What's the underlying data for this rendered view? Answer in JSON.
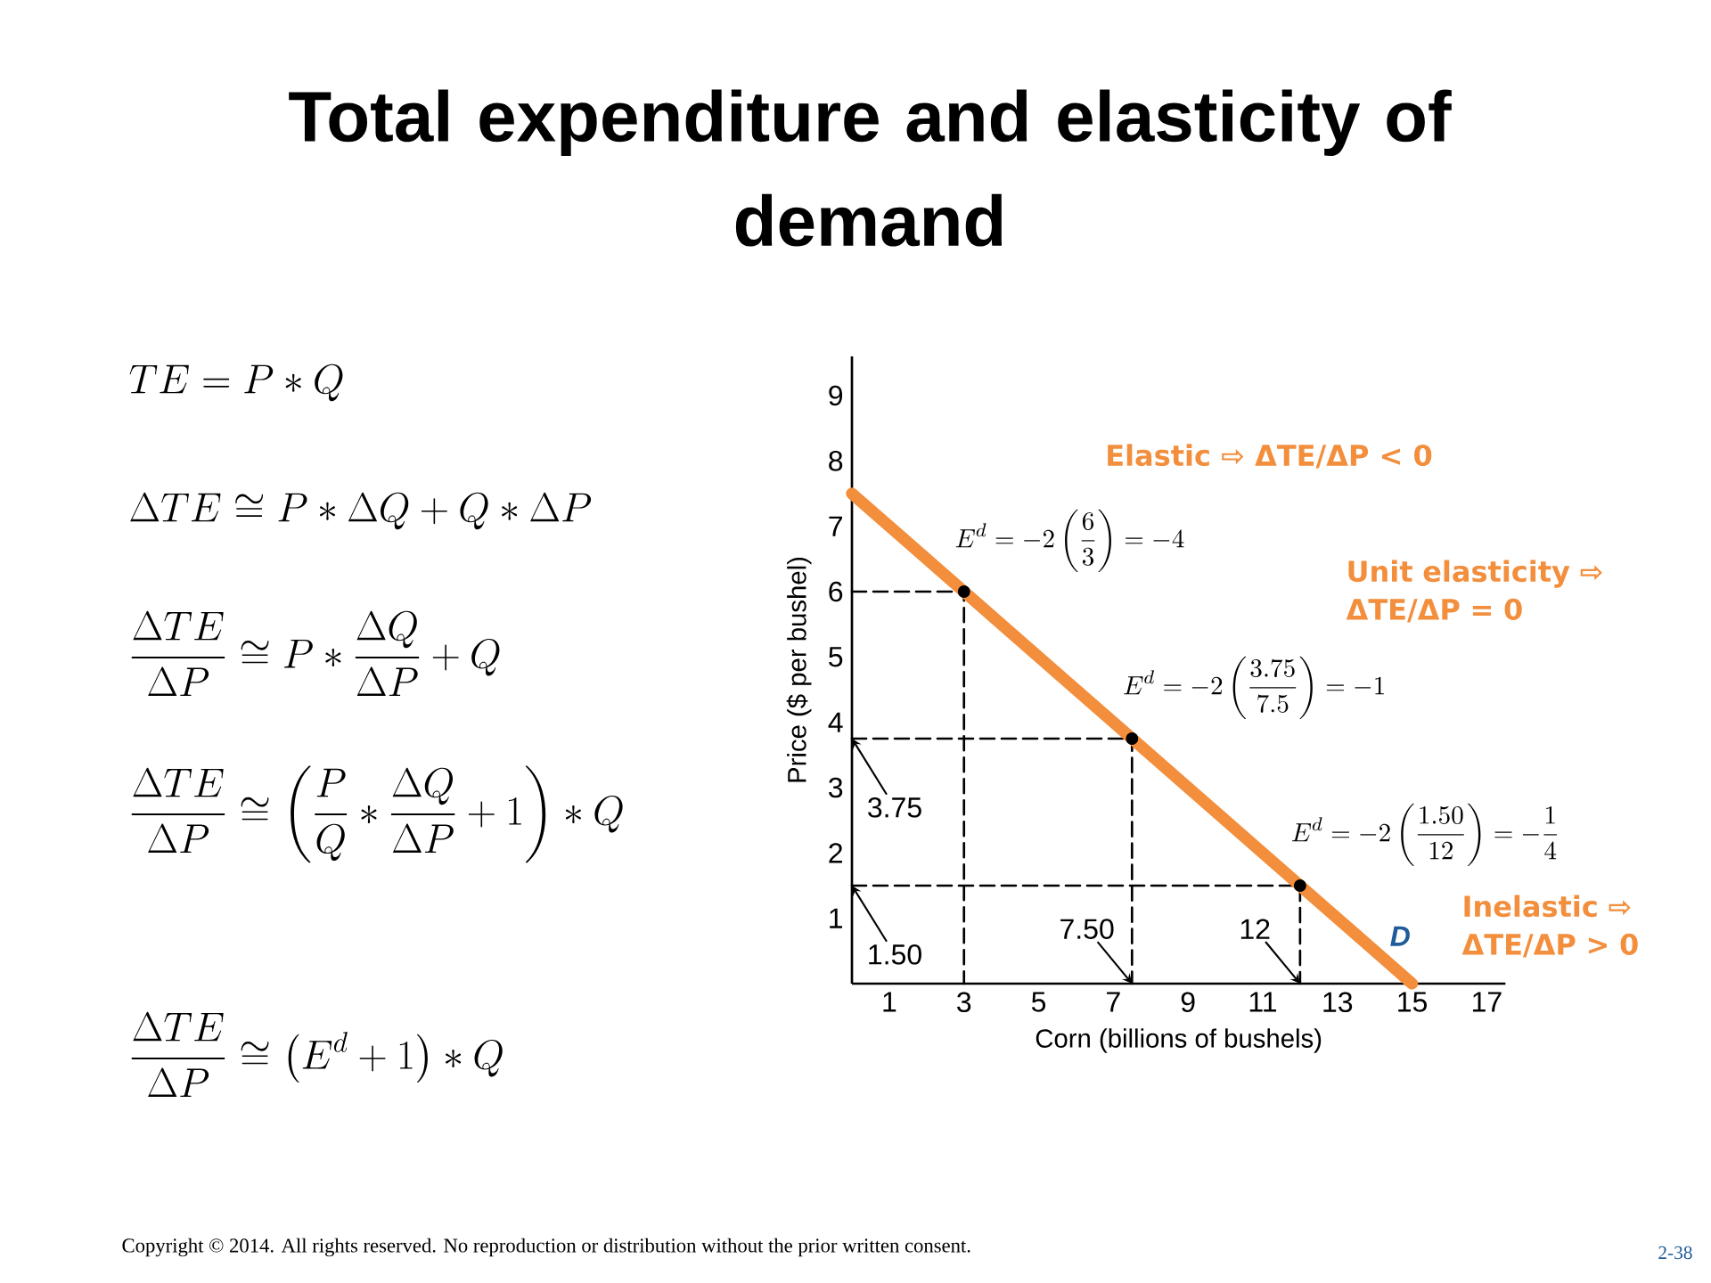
{
  "chart_data": {
    "type": "line",
    "title": "Total expenditure and elasticity of demand",
    "xlabel": "Corn (billions of bushels)",
    "ylabel": "Price ($ per bushel)",
    "xlim": [
      0,
      17.5
    ],
    "ylim": [
      0,
      9.6
    ],
    "xticks": [
      1,
      3,
      5,
      7,
      9,
      11,
      13,
      15,
      17
    ],
    "yticks": [
      1,
      2,
      3,
      4,
      5,
      6,
      7,
      8,
      9
    ],
    "series": [
      {
        "color": "#000000",
        "line_style": "dashed",
        "x": [
          0,
          3,
          3
        ],
        "values": [
          6,
          6,
          0
        ]
      },
      {
        "color": "#000000",
        "line_style": "dashed",
        "x": [
          0,
          7.5,
          7.5
        ],
        "values": [
          3.75,
          3.75,
          0
        ]
      },
      {
        "color": "#000000",
        "line_style": "dashed",
        "x": [
          0,
          12,
          12
        ],
        "values": [
          1.5,
          1.5,
          0
        ]
      },
      {
        "name": "D",
        "color": "#f28e3c",
        "line_style": "solid",
        "x": [
          0,
          15
        ],
        "values": [
          7.5,
          0
        ]
      },
      {
        "type": "scatter",
        "color": "#000000",
        "x": [
          3,
          7.5,
          12
        ],
        "values": [
          6,
          3.75,
          1.5
        ]
      }
    ],
    "annotations": [
      "TE = P \\ast Q",
      "\\Delta TE \\cong P \\ast \\Delta Q + Q \\ast \\Delta P",
      "\\frac{\\Delta TE}{\\Delta P} \\cong P \\ast \\frac{\\Delta Q}{\\Delta P} + Q",
      "\\frac{\\Delta TE}{\\Delta P} \\cong \\left(\\frac{P}{Q} \\ast \\frac{\\Delta Q}{\\Delta P} + 1\\right) \\ast Q",
      "\\frac{\\Delta TE}{\\Delta P} \\cong \\left(E^{d} + 1\\right) \\ast Q",
      {
        "text": "E^{d} = -2\\left(\\frac{6}{3}\\right) = -4",
        "x": 3,
        "y": 6
      },
      {
        "text": "E^{d} = -2\\left(\\frac{3.75}{7.5}\\right) = -1",
        "x": 7.5,
        "y": 3.75
      },
      {
        "text": "E^{d} = -2\\left(\\frac{1.50}{12}\\right) = -\\frac{1}{4}",
        "x": 12,
        "y": 1.5
      },
      {
        "text": "3.75",
        "x": 0,
        "y": 3.75
      },
      {
        "text": "1.50",
        "x": 0,
        "y": 1.5
      },
      {
        "text": "7.50",
        "x": 7.5,
        "y": 0
      },
      {
        "text": "12",
        "x": 12,
        "y": 0
      },
      "Elastic ⇨ ΔTE/ΔP < 0",
      "Unit elasticity ⇨ ΔTE/ΔP = 0",
      "Inelastic ⇨ ΔTE/ΔP > 0",
      "Copyright © 2014. All rights reserved. No reproduction or distribution without the prior written consent.",
      "2-38"
    ]
  }
}
